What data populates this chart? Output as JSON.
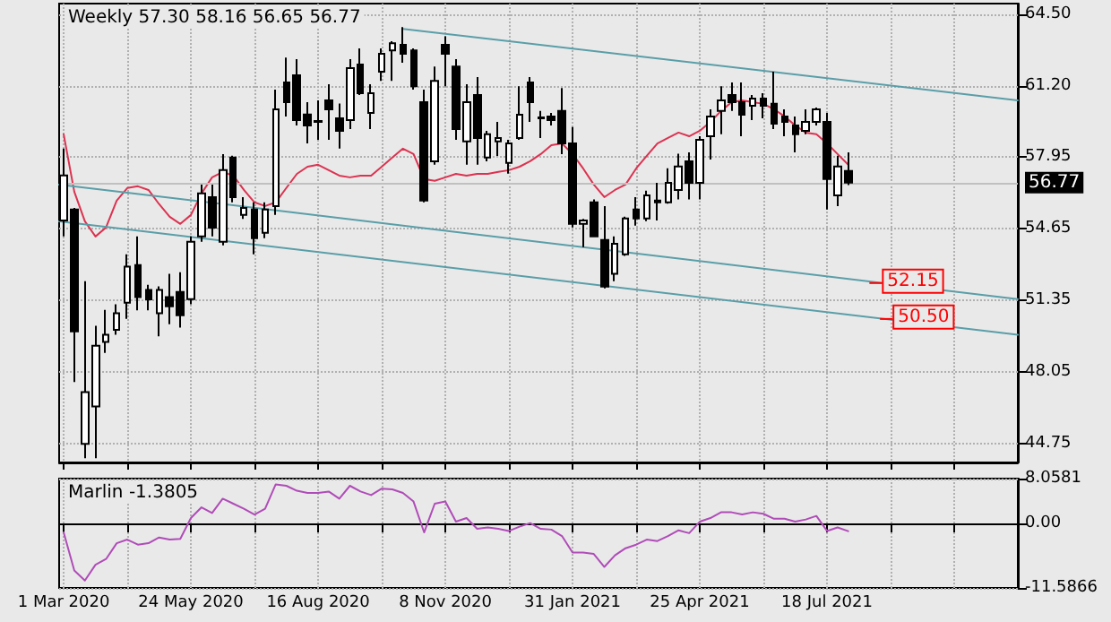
{
  "chart_data": [
    {
      "type": "candlestick",
      "title": "Weekly 57.30 58.16 56.65 56.77",
      "color": "#000000",
      "x": [
        "2020-03-01",
        "2020-03-08",
        "2020-03-15",
        "2020-03-22",
        "2020-03-29",
        "2020-04-05",
        "2020-04-12",
        "2020-04-19",
        "2020-04-26",
        "2020-05-03",
        "2020-05-10",
        "2020-05-17",
        "2020-05-24",
        "2020-05-31",
        "2020-06-07",
        "2020-06-14",
        "2020-06-21",
        "2020-06-28",
        "2020-07-05",
        "2020-07-12",
        "2020-07-19",
        "2020-07-26",
        "2020-08-02",
        "2020-08-09",
        "2020-08-16",
        "2020-08-23",
        "2020-08-30",
        "2020-09-06",
        "2020-09-13",
        "2020-09-20",
        "2020-09-27",
        "2020-10-04",
        "2020-10-11",
        "2020-10-18",
        "2020-10-25",
        "2020-11-01",
        "2020-11-08",
        "2020-11-15",
        "2020-11-22",
        "2020-11-29",
        "2020-12-06",
        "2020-12-13",
        "2020-12-20",
        "2020-12-27",
        "2021-01-03",
        "2021-01-10",
        "2021-01-17",
        "2021-01-24",
        "2021-01-31",
        "2021-02-07",
        "2021-02-14",
        "2021-02-21",
        "2021-02-28",
        "2021-03-07",
        "2021-03-14",
        "2021-03-21",
        "2021-03-28",
        "2021-04-04",
        "2021-04-11",
        "2021-04-18",
        "2021-04-25",
        "2021-05-02",
        "2021-05-09",
        "2021-05-16",
        "2021-05-23",
        "2021-05-30",
        "2021-06-06",
        "2021-06-13",
        "2021-06-20",
        "2021-06-27",
        "2021-07-04",
        "2021-07-11",
        "2021-07-18",
        "2021-07-25",
        "2021-08-01"
      ],
      "ohlc": [
        [
          55.03,
          58.33,
          54.3,
          57.1
        ],
        [
          55.53,
          55.6,
          47.6,
          49.93
        ],
        [
          44.75,
          52.24,
          44.1,
          47.13
        ],
        [
          46.48,
          50.18,
          44.1,
          49.27
        ],
        [
          49.44,
          50.92,
          48.94,
          49.77
        ],
        [
          50.0,
          51.17,
          49.77,
          50.76
        ],
        [
          51.25,
          53.47,
          50.5,
          52.9
        ],
        [
          52.98,
          54.3,
          50.9,
          51.5
        ],
        [
          51.83,
          52.07,
          50.9,
          51.4
        ],
        [
          50.76,
          52.0,
          49.7,
          51.83
        ],
        [
          51.5,
          52.57,
          50.26,
          51.08
        ],
        [
          51.74,
          52.65,
          50.1,
          50.67
        ],
        [
          51.41,
          54.3,
          51.17,
          54.05
        ],
        [
          54.3,
          56.68,
          54.05,
          56.27
        ],
        [
          56.1,
          56.68,
          54.3,
          54.7
        ],
        [
          54.05,
          58.08,
          53.88,
          57.34
        ],
        [
          57.92,
          58.0,
          55.86,
          56.1
        ],
        [
          55.28,
          56.1,
          55.1,
          55.6
        ],
        [
          55.53,
          55.86,
          53.47,
          54.21
        ],
        [
          54.46,
          55.86,
          54.21,
          55.53
        ],
        [
          55.69,
          61.04,
          55.28,
          60.14
        ],
        [
          61.37,
          62.52,
          59.81,
          60.47
        ],
        [
          61.7,
          62.44,
          59.4,
          59.64
        ],
        [
          59.9,
          60.47,
          58.57,
          59.4
        ],
        [
          59.6,
          60.55,
          58.74,
          59.56
        ],
        [
          60.55,
          61.29,
          58.74,
          60.14
        ],
        [
          59.73,
          60.4,
          58.33,
          59.15
        ],
        [
          59.64,
          62.44,
          59.23,
          62.03
        ],
        [
          62.2,
          62.94,
          60.8,
          60.88
        ],
        [
          59.97,
          61.29,
          59.23,
          60.88
        ],
        [
          61.87,
          62.94,
          61.45,
          62.69
        ],
        [
          62.85,
          63.27,
          61.45,
          63.18
        ],
        [
          63.1,
          63.92,
          62.28,
          62.69
        ],
        [
          62.85,
          62.94,
          61.04,
          61.2
        ],
        [
          60.47,
          61.04,
          55.86,
          55.94
        ],
        [
          57.75,
          62.11,
          57.59,
          61.45
        ],
        [
          63.1,
          63.5,
          61.2,
          62.69
        ],
        [
          62.11,
          62.44,
          58.74,
          59.23
        ],
        [
          58.66,
          61.29,
          57.59,
          60.47
        ],
        [
          60.8,
          61.62,
          57.59,
          58.82
        ],
        [
          57.92,
          59.15,
          57.75,
          58.99
        ],
        [
          58.66,
          59.56,
          57.99,
          58.82
        ],
        [
          57.67,
          58.74,
          57.18,
          58.57
        ],
        [
          58.82,
          61.2,
          58.74,
          59.89
        ],
        [
          61.37,
          61.62,
          59.56,
          60.47
        ],
        [
          59.77,
          60.06,
          58.82,
          59.73
        ],
        [
          59.81,
          59.97,
          59.4,
          59.64
        ],
        [
          60.06,
          61.12,
          58.08,
          58.57
        ],
        [
          58.57,
          59.32,
          54.71,
          54.87
        ],
        [
          54.87,
          55.1,
          53.8,
          55.03
        ],
        [
          55.86,
          56.0,
          54.25,
          54.3
        ],
        [
          54.13,
          55.69,
          51.91,
          51.99
        ],
        [
          52.57,
          54.3,
          52.24,
          53.96
        ],
        [
          53.47,
          55.2,
          53.4,
          55.12
        ],
        [
          55.53,
          56.1,
          54.79,
          55.12
        ],
        [
          55.12,
          56.4,
          55.0,
          56.18
        ],
        [
          55.94,
          56.76,
          55.03,
          55.86
        ],
        [
          55.86,
          57.43,
          55.8,
          56.76
        ],
        [
          56.43,
          58.1,
          56.0,
          57.51
        ],
        [
          57.75,
          58.16,
          56.0,
          56.76
        ],
        [
          56.76,
          58.9,
          56.0,
          58.74
        ],
        [
          58.9,
          60.14,
          57.83,
          59.81
        ],
        [
          60.06,
          61.2,
          58.99,
          60.55
        ],
        [
          60.8,
          61.37,
          60.06,
          60.47
        ],
        [
          60.47,
          61.37,
          58.9,
          59.89
        ],
        [
          60.3,
          60.8,
          59.64,
          60.63
        ],
        [
          60.63,
          60.88,
          59.73,
          60.3
        ],
        [
          60.39,
          61.87,
          59.23,
          59.48
        ],
        [
          59.81,
          60.14,
          58.9,
          59.56
        ],
        [
          59.4,
          59.81,
          58.16,
          58.99
        ],
        [
          59.15,
          60.14,
          58.99,
          59.56
        ],
        [
          59.56,
          60.22,
          59.4,
          60.14
        ],
        [
          59.56,
          59.97,
          55.53,
          56.93
        ],
        [
          56.18,
          58.0,
          55.69,
          57.51
        ],
        [
          57.3,
          58.16,
          56.65,
          56.77
        ]
      ],
      "series": [
        {
          "type": "line",
          "color": "#dc3250",
          "values": [
            58.99,
            56.35,
            54.99,
            54.29,
            54.71,
            55.94,
            56.52,
            56.6,
            56.43,
            55.78,
            55.2,
            54.87,
            55.28,
            56.27,
            57.01,
            57.26,
            57.09,
            56.43,
            55.86,
            55.69,
            55.86,
            56.52,
            57.17,
            57.5,
            57.59,
            57.34,
            57.09,
            57.01,
            57.09,
            57.09,
            57.5,
            57.92,
            58.33,
            58.08,
            56.93,
            56.85,
            57.01,
            57.17,
            57.09,
            57.17,
            57.17,
            57.26,
            57.34,
            57.5,
            57.75,
            58.08,
            58.49,
            58.57,
            58.08,
            57.42,
            56.68,
            56.1,
            56.43,
            56.68,
            57.42,
            58.0,
            58.57,
            58.82,
            59.07,
            58.9,
            59.15,
            59.56,
            60.06,
            60.47,
            60.55,
            60.47,
            60.39,
            60.14,
            59.81,
            59.4,
            59.07,
            58.99,
            58.57,
            58.08,
            57.59
          ]
        },
        {
          "type": "line",
          "color": "#5a9ea8",
          "x": [
            "2020-10-11",
            "2021-11-21"
          ],
          "values": [
            63.84,
            60.55
          ]
        },
        {
          "type": "line",
          "color": "#5a9ea8",
          "x": [
            "2020-02-27",
            "2021-11-21"
          ],
          "values": [
            56.68,
            51.41
          ]
        },
        {
          "type": "line",
          "color": "#5a9ea8",
          "x": [
            "2020-02-27",
            "2021-11-21"
          ],
          "values": [
            54.99,
            49.77
          ]
        }
      ],
      "xlim": [
        "2020-02-27",
        "2021-11-21"
      ],
      "xticks": [
        {
          "value": "2020-03-01",
          "label": null
        },
        {
          "value": "2020-04-12",
          "label": null
        },
        {
          "value": "2020-05-24",
          "label": null
        },
        {
          "value": "2020-07-05",
          "label": null
        },
        {
          "value": "2020-08-16",
          "label": null
        },
        {
          "value": "2020-09-27",
          "label": null
        },
        {
          "value": "2020-11-08",
          "label": null
        },
        {
          "value": "2020-12-20",
          "label": null
        },
        {
          "value": "2021-01-31",
          "label": null
        },
        {
          "value": "2021-03-14",
          "label": null
        },
        {
          "value": "2021-04-25",
          "label": null
        },
        {
          "value": "2021-06-06",
          "label": null
        },
        {
          "value": "2021-07-18",
          "label": null
        },
        {
          "value": "2021-08-29",
          "label": null
        },
        {
          "value": "2021-10-10",
          "label": null
        }
      ],
      "ylim": [
        43.9,
        65.0
      ],
      "yticks": [
        {
          "value": 44.75,
          "label": "44.75"
        },
        {
          "value": 48.05,
          "label": "48.05"
        },
        {
          "value": 51.35,
          "label": "51.35"
        },
        {
          "value": 54.65,
          "label": "54.65"
        },
        {
          "value": 57.95,
          "label": "57.95"
        },
        {
          "value": 61.2,
          "label": "61.20"
        },
        {
          "value": 64.5,
          "label": "64.50"
        }
      ],
      "tick_labels": "y",
      "grid": true,
      "ref_lines": [
        {
          "axis": "y",
          "value": 56.77,
          "label": "56.77",
          "color": "#c0c0c0"
        }
      ],
      "annotations": [
        {
          "text": "52.15",
          "x": "2021-08-15",
          "y": 52.15
        },
        {
          "text": "50.50",
          "x": "2021-08-22",
          "y": 50.5
        }
      ]
    },
    {
      "type": "line",
      "title": "Marlin -1.3805",
      "x": [
        "2020-03-01",
        "2020-03-08",
        "2020-03-15",
        "2020-03-22",
        "2020-03-29",
        "2020-04-05",
        "2020-04-12",
        "2020-04-19",
        "2020-04-26",
        "2020-05-03",
        "2020-05-10",
        "2020-05-17",
        "2020-05-24",
        "2020-05-31",
        "2020-06-07",
        "2020-06-14",
        "2020-06-21",
        "2020-06-28",
        "2020-07-05",
        "2020-07-12",
        "2020-07-19",
        "2020-07-26",
        "2020-08-02",
        "2020-08-09",
        "2020-08-16",
        "2020-08-23",
        "2020-08-30",
        "2020-09-06",
        "2020-09-13",
        "2020-09-20",
        "2020-09-27",
        "2020-10-04",
        "2020-10-11",
        "2020-10-18",
        "2020-10-25",
        "2020-11-01",
        "2020-11-08",
        "2020-11-15",
        "2020-11-22",
        "2020-11-29",
        "2020-12-06",
        "2020-12-13",
        "2020-12-20",
        "2020-12-27",
        "2021-01-03",
        "2021-01-10",
        "2021-01-17",
        "2021-01-24",
        "2021-01-31",
        "2021-02-07",
        "2021-02-14",
        "2021-02-21",
        "2021-02-28",
        "2021-03-07",
        "2021-03-14",
        "2021-03-21",
        "2021-03-28",
        "2021-04-04",
        "2021-04-11",
        "2021-04-18",
        "2021-04-25",
        "2021-05-02",
        "2021-05-09",
        "2021-05-16",
        "2021-05-23",
        "2021-05-30",
        "2021-06-06",
        "2021-06-13",
        "2021-06-20",
        "2021-06-27",
        "2021-07-04",
        "2021-07-11",
        "2021-07-18",
        "2021-07-25",
        "2021-08-01"
      ],
      "series": [
        {
          "color": "#b04cb8",
          "values": [
            -1.61,
            -8.45,
            -10.26,
            -7.42,
            -6.39,
            -3.55,
            -2.9,
            -3.81,
            -3.55,
            -2.52,
            -2.9,
            -2.77,
            0.97,
            2.9,
            1.87,
            4.45,
            3.55,
            2.65,
            1.61,
            2.65,
            7.03,
            6.77,
            5.87,
            5.48,
            5.48,
            5.74,
            4.45,
            6.77,
            5.74,
            5.1,
            6.26,
            6.13,
            5.48,
            3.94,
            -1.61,
            3.55,
            3.94,
            0.32,
            0.97,
            -0.97,
            -0.71,
            -0.97,
            -1.35,
            -0.58,
            0.06,
            -0.97,
            -1.1,
            -2.26,
            -5.23,
            -5.23,
            -5.48,
            -7.81,
            -5.74,
            -4.45,
            -3.81,
            -2.9,
            -3.16,
            -2.26,
            -1.23,
            -1.74,
            0.32,
            0.97,
            2.0,
            2.0,
            1.61,
            2.0,
            1.74,
            0.84,
            0.84,
            0.32,
            0.71,
            1.35,
            -1.35,
            -0.71,
            -1.3805
          ]
        }
      ],
      "xlim": [
        "2020-02-27",
        "2021-11-21"
      ],
      "xticks": [
        {
          "value": "2020-03-01",
          "label": "1 Mar 2020"
        },
        {
          "value": "2020-04-12",
          "label": null
        },
        {
          "value": "2020-05-24",
          "label": "24 May 2020"
        },
        {
          "value": "2020-07-05",
          "label": null
        },
        {
          "value": "2020-08-16",
          "label": "16 Aug 2020"
        },
        {
          "value": "2020-09-27",
          "label": null
        },
        {
          "value": "2020-11-08",
          "label": "8 Nov 2020"
        },
        {
          "value": "2020-12-20",
          "label": null
        },
        {
          "value": "2021-01-31",
          "label": "31 Jan 2021"
        },
        {
          "value": "2021-03-14",
          "label": null
        },
        {
          "value": "2021-04-25",
          "label": "25 Apr 2021"
        },
        {
          "value": "2021-06-06",
          "label": null
        },
        {
          "value": "2021-07-18",
          "label": "18 Jul 2021"
        },
        {
          "value": "2021-08-29",
          "label": null
        },
        {
          "value": "2021-10-10",
          "label": null
        }
      ],
      "ylim": [
        -11.5866,
        8.0581
      ],
      "yticks": [
        {
          "value": -11.5866,
          "label": "-11.5866"
        },
        {
          "value": 0,
          "label": "0.00"
        },
        {
          "value": 8.0581,
          "label": "8.0581"
        }
      ],
      "grid": true
    }
  ]
}
